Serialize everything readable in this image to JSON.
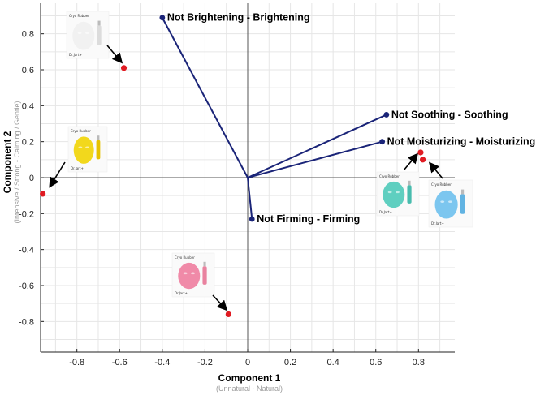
{
  "chart_data": {
    "type": "scatter",
    "subtype": "biplot",
    "xlabel": "Component 1",
    "xlabel_sub": "(Unnatural - Natural)",
    "ylabel": "Component 2",
    "ylabel_sub": "(Intensive / Strong - Calming / Gentle)",
    "xlim": [
      -0.97,
      0.97
    ],
    "ylim": [
      -0.97,
      0.97
    ],
    "x_ticks": [
      "-0.8",
      "-0.6",
      "-0.4",
      "-0.2",
      "0",
      "0.2",
      "0.4",
      "0.6",
      "0.8"
    ],
    "y_ticks": [
      "0.8",
      "0.6",
      "0.4",
      "0.2",
      "0",
      "-0.2",
      "-0.4",
      "-0.6",
      "-0.8"
    ],
    "grid": true,
    "vectors": [
      {
        "label": "Not Brightening - Brightening",
        "x": -0.4,
        "y": 0.89
      },
      {
        "label": "Not Soothing - Soothing",
        "x": 0.65,
        "y": 0.35
      },
      {
        "label": "Not Moisturizing - Moisturizing",
        "x": 0.63,
        "y": 0.2
      },
      {
        "label": "Not Firming - Firming",
        "x": 0.02,
        "y": -0.23
      }
    ],
    "points": [
      {
        "x": -0.58,
        "y": 0.61,
        "mask": "white"
      },
      {
        "x": -0.96,
        "y": -0.09,
        "mask": "yellow"
      },
      {
        "x": -0.09,
        "y": -0.76,
        "mask": "pink"
      },
      {
        "x": 0.81,
        "y": 0.14,
        "mask": "teal"
      },
      {
        "x": 0.82,
        "y": 0.1,
        "mask": "blue"
      }
    ],
    "colors": {
      "vector": "#1a2478",
      "point": "#e01b22",
      "grid": "#e6e6e6",
      "axis": "#222222"
    }
  },
  "product_images": [
    {
      "name": "white",
      "brand": "Dr.Jart+",
      "title": "Cryo Rubber",
      "face": "#f1f1f1",
      "accent": "#dcdcdc"
    },
    {
      "name": "yellow",
      "brand": "Dr.Jart+",
      "title": "Cryo Rubber",
      "face": "#f2d81c",
      "accent": "#e6c200"
    },
    {
      "name": "pink",
      "brand": "Dr.Jart+",
      "title": "Cryo Rubber",
      "face": "#f08aa8",
      "accent": "#e9829f"
    },
    {
      "name": "teal",
      "brand": "Dr.Jart+",
      "title": "Cryo Rubber",
      "face": "#5fcfc0",
      "accent": "#48bcae"
    },
    {
      "name": "blue",
      "brand": "Dr.Jart+",
      "title": "Cryo Rubber",
      "face": "#7cc6ef",
      "accent": "#61b3e2"
    }
  ]
}
